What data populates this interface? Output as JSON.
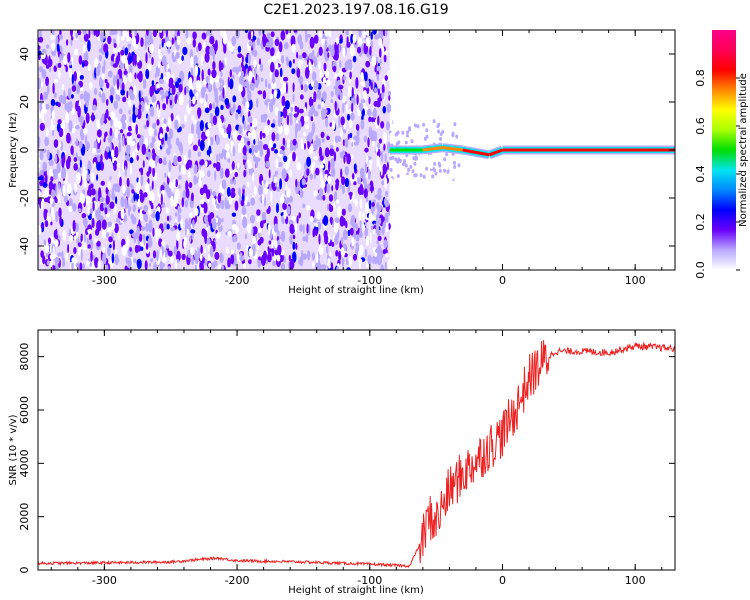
{
  "title": "C2E1.2023.197.08.16.G19",
  "chart_data": [
    {
      "type": "heatmap",
      "xlabel": "Height of straight line (km)",
      "ylabel": "Frequency (Hz)",
      "xlim": [
        -350,
        130
      ],
      "ylim": [
        -50,
        50
      ],
      "xticks": [
        -300,
        -200,
        -100,
        0,
        100
      ],
      "yticks": [
        -40,
        -20,
        0,
        20,
        40
      ],
      "colorbar": {
        "label": "Normalized spectral amplitude",
        "range": [
          0.0,
          1.0
        ],
        "ticks": [
          0.0,
          0.2,
          0.4,
          0.6,
          0.8
        ],
        "colors": [
          "#ffffff",
          "#b8a8ff",
          "#6a00ff",
          "#0000ff",
          "#0088ff",
          "#00e5ee",
          "#00dd00",
          "#aaff00",
          "#ffff00",
          "#ff8800",
          "#ff0000",
          "#ff0055",
          "#ff0088"
        ]
      },
      "noise_region_x": [
        -350,
        -85
      ],
      "signal_line": [
        {
          "x": -85,
          "y": 0,
          "amp": 0.35
        },
        {
          "x": -60,
          "y": 0,
          "amp": 0.75
        },
        {
          "x": -45,
          "y": 1,
          "amp": 0.8
        },
        {
          "x": -30,
          "y": 0,
          "amp": 0.85
        },
        {
          "x": -10,
          "y": -2,
          "amp": 0.85
        },
        {
          "x": 0,
          "y": 0,
          "amp": 0.9
        },
        {
          "x": 130,
          "y": 0,
          "amp": 0.92
        }
      ]
    },
    {
      "type": "line",
      "xlabel": "Height of straight line (km)",
      "ylabel": "SNR (10 * v/v)",
      "xlim": [
        -350,
        130
      ],
      "ylim": [
        0,
        9000
      ],
      "xticks": [
        -300,
        -200,
        -100,
        0,
        100
      ],
      "yticks": [
        0,
        2000,
        4000,
        6000,
        8000
      ],
      "series_color": "#ee2222",
      "series": [
        {
          "x": [
            -350,
            -300,
            -250,
            -215,
            -200,
            -150,
            -100,
            -70,
            -60,
            -55,
            -50,
            -40,
            -30,
            -20,
            -10,
            0,
            10,
            20,
            30,
            40,
            60,
            80,
            100,
            130
          ],
          "values": [
            250,
            270,
            300,
            450,
            350,
            300,
            220,
            150,
            1200,
            2000,
            1800,
            3000,
            3600,
            4100,
            4600,
            5100,
            6000,
            7200,
            7800,
            8200,
            8200,
            8150,
            8400,
            8300
          ]
        }
      ]
    }
  ]
}
